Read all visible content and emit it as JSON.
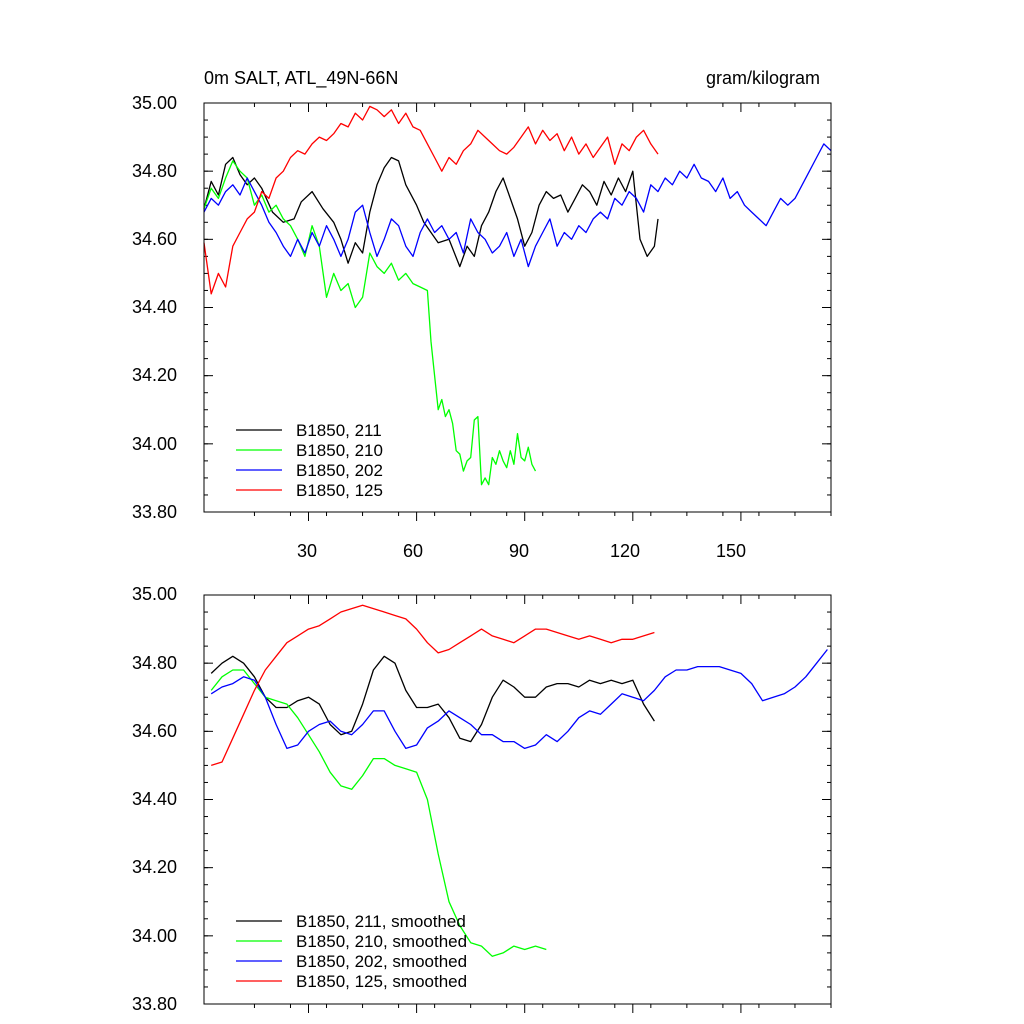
{
  "chart_data": [
    {
      "type": "line",
      "title": "0m SALT, ATL_49N-66N",
      "units": "gram/kilogram",
      "xlabel": "",
      "ylabel": "",
      "xlim": [
        1,
        175
      ],
      "ylim": [
        33.8,
        35.0
      ],
      "xticks": [
        30,
        60,
        90,
        120,
        150
      ],
      "xtick_labels": [
        "30",
        "60",
        "90",
        "120",
        "150"
      ],
      "yticks": [
        33.8,
        34.0,
        34.2,
        34.4,
        34.6,
        34.8,
        35.0
      ],
      "ytick_labels": [
        "33.80",
        "34.00",
        "34.20",
        "34.40",
        "34.60",
        "34.80",
        "35.00"
      ],
      "legend_position": "bottom-left",
      "series": [
        {
          "name": "B1850, 211",
          "color": "#000000",
          "x": [
            1,
            3,
            5,
            7,
            9,
            11,
            13,
            15,
            17,
            20,
            23,
            26,
            28,
            31,
            34,
            37,
            39,
            41,
            43,
            45,
            47,
            49,
            51,
            53,
            55,
            57,
            60,
            62,
            64,
            66,
            69,
            72,
            74,
            76,
            78,
            80,
            82,
            84,
            86,
            88,
            90,
            92,
            94,
            96,
            98,
            100,
            102,
            104,
            106,
            108,
            110,
            112,
            114,
            116,
            118,
            120,
            122,
            124,
            126,
            127
          ],
          "y": [
            34.69,
            34.77,
            34.73,
            34.82,
            34.84,
            34.79,
            34.76,
            34.78,
            34.75,
            34.68,
            34.65,
            34.66,
            34.71,
            34.74,
            34.69,
            34.65,
            34.6,
            34.53,
            34.59,
            34.56,
            34.68,
            34.76,
            34.81,
            34.84,
            34.83,
            34.76,
            34.7,
            34.65,
            34.62,
            34.59,
            34.6,
            34.52,
            34.58,
            34.55,
            34.64,
            34.68,
            34.74,
            34.78,
            34.72,
            34.66,
            34.58,
            34.62,
            34.7,
            34.74,
            34.72,
            34.73,
            34.68,
            34.72,
            34.76,
            34.74,
            34.7,
            34.77,
            34.73,
            34.78,
            34.74,
            34.8,
            34.6,
            34.55,
            34.58,
            34.66
          ]
        },
        {
          "name": "B1850, 210",
          "color": "#00ff00",
          "x": [
            1,
            3,
            5,
            7,
            9,
            11,
            13,
            15,
            17,
            19,
            21,
            23,
            25,
            27,
            29,
            31,
            33,
            35,
            37,
            39,
            41,
            43,
            45,
            47,
            49,
            51,
            53,
            55,
            57,
            59,
            61,
            63,
            64,
            65,
            66,
            67,
            68,
            69,
            70,
            71,
            72,
            73,
            74,
            75,
            76,
            77,
            78,
            79,
            80,
            81,
            82,
            83,
            84,
            85,
            86,
            87,
            88,
            89,
            90,
            91,
            92,
            93
          ],
          "y": [
            34.69,
            34.75,
            34.72,
            34.78,
            34.83,
            34.8,
            34.78,
            34.7,
            34.73,
            34.68,
            34.7,
            34.66,
            34.64,
            34.6,
            34.55,
            34.64,
            34.58,
            34.43,
            34.5,
            34.45,
            34.47,
            34.4,
            34.43,
            34.56,
            34.52,
            34.5,
            34.53,
            34.48,
            34.5,
            34.47,
            34.46,
            34.45,
            34.3,
            34.2,
            34.1,
            34.13,
            34.08,
            34.1,
            34.06,
            33.98,
            33.97,
            33.92,
            33.95,
            33.96,
            34.07,
            34.08,
            33.88,
            33.9,
            33.88,
            33.96,
            33.94,
            33.98,
            33.95,
            33.93,
            33.98,
            33.94,
            34.03,
            33.96,
            33.95,
            33.99,
            33.94,
            33.92
          ]
        },
        {
          "name": "B1850, 202",
          "color": "#0000ff",
          "x": [
            1,
            3,
            5,
            7,
            9,
            11,
            13,
            15,
            17,
            19,
            21,
            23,
            25,
            27,
            29,
            31,
            33,
            35,
            37,
            39,
            41,
            43,
            45,
            47,
            49,
            51,
            53,
            55,
            57,
            59,
            61,
            63,
            65,
            67,
            69,
            71,
            73,
            75,
            77,
            79,
            81,
            83,
            85,
            87,
            89,
            91,
            93,
            95,
            97,
            99,
            101,
            103,
            105,
            107,
            109,
            111,
            113,
            115,
            117,
            119,
            121,
            123,
            125,
            127,
            129,
            131,
            133,
            135,
            137,
            139,
            141,
            143,
            145,
            147,
            149,
            151,
            153,
            155,
            157,
            159,
            161,
            163,
            165,
            167,
            169,
            171,
            173,
            175
          ],
          "y": [
            34.68,
            34.72,
            34.7,
            34.74,
            34.76,
            34.73,
            34.78,
            34.74,
            34.7,
            34.65,
            34.62,
            34.58,
            34.55,
            34.6,
            34.56,
            34.62,
            34.58,
            34.64,
            34.6,
            34.55,
            34.6,
            34.68,
            34.7,
            34.62,
            34.55,
            34.6,
            34.66,
            34.64,
            34.58,
            34.55,
            34.62,
            34.66,
            34.62,
            34.64,
            34.6,
            34.62,
            34.56,
            34.66,
            34.62,
            34.6,
            34.56,
            34.58,
            34.62,
            34.55,
            34.6,
            34.52,
            34.58,
            34.62,
            34.66,
            34.58,
            34.62,
            34.6,
            34.64,
            34.62,
            34.66,
            34.68,
            34.66,
            34.72,
            34.7,
            34.74,
            34.72,
            34.68,
            34.76,
            34.74,
            34.78,
            34.76,
            34.8,
            34.78,
            34.82,
            34.78,
            34.77,
            34.74,
            34.78,
            34.72,
            34.74,
            34.7,
            34.68,
            34.66,
            34.64,
            34.68,
            34.72,
            34.7,
            34.72,
            34.76,
            34.8,
            34.84,
            34.88,
            34.86
          ]
        },
        {
          "name": "B1850, 125",
          "color": "#ff0000",
          "x": [
            1,
            3,
            5,
            7,
            9,
            11,
            13,
            15,
            17,
            19,
            21,
            23,
            25,
            27,
            29,
            31,
            33,
            35,
            37,
            39,
            41,
            43,
            45,
            47,
            49,
            51,
            53,
            55,
            57,
            59,
            61,
            63,
            65,
            67,
            69,
            71,
            73,
            75,
            77,
            79,
            81,
            83,
            85,
            87,
            89,
            91,
            93,
            95,
            97,
            99,
            101,
            103,
            105,
            107,
            109,
            111,
            113,
            115,
            117,
            119,
            121,
            123,
            125,
            127
          ],
          "y": [
            34.59,
            34.44,
            34.5,
            34.46,
            34.58,
            34.62,
            34.66,
            34.68,
            34.74,
            34.72,
            34.78,
            34.8,
            34.84,
            34.86,
            34.85,
            34.88,
            34.9,
            34.89,
            34.91,
            34.94,
            34.93,
            34.97,
            34.95,
            34.99,
            34.98,
            34.96,
            34.98,
            34.94,
            34.97,
            34.93,
            34.92,
            34.88,
            34.84,
            34.8,
            34.84,
            34.82,
            34.86,
            34.88,
            34.92,
            34.9,
            34.88,
            34.86,
            34.85,
            34.87,
            34.9,
            34.93,
            34.88,
            34.92,
            34.89,
            34.91,
            34.86,
            34.9,
            34.85,
            34.88,
            34.84,
            34.87,
            34.9,
            34.82,
            34.88,
            34.86,
            34.9,
            34.92,
            34.88,
            34.85
          ]
        }
      ]
    },
    {
      "type": "line",
      "title": "",
      "xlabel": "",
      "ylabel": "",
      "xlim": [
        1,
        175
      ],
      "ylim": [
        33.8,
        35.0
      ],
      "xticks": [
        30,
        60,
        90,
        120,
        150
      ],
      "yticks": [
        33.8,
        34.0,
        34.2,
        34.4,
        34.6,
        34.8,
        35.0
      ],
      "ytick_labels": [
        "33.80",
        "34.00",
        "34.20",
        "34.40",
        "34.60",
        "34.80",
        "35.00"
      ],
      "legend_position": "bottom-left",
      "series": [
        {
          "name": "B1850, 211, smoothed",
          "color": "#000000",
          "x": [
            3,
            6,
            9,
            12,
            15,
            18,
            21,
            24,
            27,
            30,
            33,
            36,
            39,
            42,
            45,
            48,
            51,
            54,
            57,
            60,
            63,
            66,
            69,
            72,
            75,
            78,
            81,
            84,
            87,
            90,
            93,
            96,
            99,
            102,
            105,
            108,
            111,
            114,
            117,
            120,
            123,
            126
          ],
          "y": [
            34.77,
            34.8,
            34.82,
            34.8,
            34.76,
            34.7,
            34.67,
            34.67,
            34.69,
            34.7,
            34.68,
            34.62,
            34.59,
            34.6,
            34.68,
            34.78,
            34.82,
            34.8,
            34.72,
            34.67,
            34.67,
            34.68,
            34.64,
            34.58,
            34.57,
            34.62,
            34.7,
            34.75,
            34.73,
            34.7,
            34.7,
            34.73,
            34.74,
            34.74,
            34.73,
            34.75,
            34.74,
            34.75,
            34.74,
            34.75,
            34.68,
            34.63
          ]
        },
        {
          "name": "B1850, 210, smoothed",
          "color": "#00ff00",
          "x": [
            3,
            6,
            9,
            12,
            15,
            18,
            21,
            24,
            27,
            30,
            33,
            36,
            39,
            42,
            45,
            48,
            51,
            54,
            57,
            60,
            63,
            66,
            69,
            72,
            75,
            78,
            81,
            84,
            87,
            90,
            93,
            96
          ],
          "y": [
            34.72,
            34.76,
            34.78,
            34.78,
            34.74,
            34.7,
            34.69,
            34.68,
            34.64,
            34.59,
            34.54,
            34.48,
            34.44,
            34.43,
            34.47,
            34.52,
            34.52,
            34.5,
            34.49,
            34.48,
            34.4,
            34.24,
            34.1,
            34.03,
            33.98,
            33.97,
            33.94,
            33.95,
            33.97,
            33.96,
            33.97,
            33.96
          ]
        },
        {
          "name": "B1850, 202, smoothed",
          "color": "#0000ff",
          "x": [
            3,
            6,
            9,
            12,
            15,
            18,
            21,
            24,
            27,
            30,
            33,
            36,
            39,
            42,
            45,
            48,
            51,
            54,
            57,
            60,
            63,
            66,
            69,
            72,
            75,
            78,
            81,
            84,
            87,
            90,
            93,
            96,
            99,
            102,
            105,
            108,
            111,
            114,
            117,
            120,
            123,
            126,
            129,
            132,
            135,
            138,
            141,
            144,
            147,
            150,
            153,
            156,
            159,
            162,
            165,
            168,
            171,
            174
          ],
          "y": [
            34.71,
            34.73,
            34.74,
            34.76,
            34.75,
            34.7,
            34.62,
            34.55,
            34.56,
            34.6,
            34.62,
            34.63,
            34.6,
            34.59,
            34.62,
            34.66,
            34.66,
            34.6,
            34.55,
            34.56,
            34.61,
            34.63,
            34.66,
            34.64,
            34.62,
            34.59,
            34.59,
            34.57,
            34.57,
            34.55,
            34.56,
            34.59,
            34.57,
            34.6,
            34.64,
            34.66,
            34.65,
            34.68,
            34.71,
            34.7,
            34.69,
            34.72,
            34.76,
            34.78,
            34.78,
            34.79,
            34.79,
            34.79,
            34.78,
            34.77,
            34.74,
            34.69,
            34.7,
            34.71,
            34.73,
            34.76,
            34.8,
            34.84
          ]
        },
        {
          "name": "B1850, 125, smoothed",
          "color": "#ff0000",
          "x": [
            3,
            6,
            9,
            12,
            15,
            18,
            21,
            24,
            27,
            30,
            33,
            36,
            39,
            42,
            45,
            48,
            51,
            54,
            57,
            60,
            63,
            66,
            69,
            72,
            75,
            78,
            81,
            84,
            87,
            90,
            93,
            96,
            99,
            102,
            105,
            108,
            111,
            114,
            117,
            120,
            123,
            126
          ],
          "y": [
            34.5,
            34.51,
            34.58,
            34.65,
            34.72,
            34.78,
            34.82,
            34.86,
            34.88,
            34.9,
            34.91,
            34.93,
            34.95,
            34.96,
            34.97,
            34.96,
            34.95,
            34.94,
            34.93,
            34.9,
            34.86,
            34.83,
            34.84,
            34.86,
            34.88,
            34.9,
            34.88,
            34.87,
            34.86,
            34.88,
            34.9,
            34.9,
            34.89,
            34.88,
            34.87,
            34.88,
            34.87,
            34.86,
            34.87,
            34.87,
            34.88,
            34.89
          ]
        }
      ]
    }
  ]
}
